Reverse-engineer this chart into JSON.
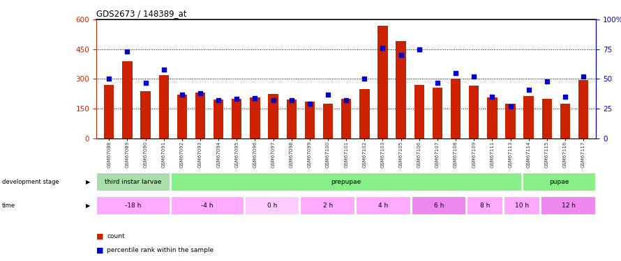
{
  "title": "GDS2673 / 148389_at",
  "samples": [
    "GSM67088",
    "GSM67089",
    "GSM67090",
    "GSM67091",
    "GSM67092",
    "GSM67093",
    "GSM67094",
    "GSM67095",
    "GSM67096",
    "GSM67097",
    "GSM67098",
    "GSM67099",
    "GSM67100",
    "GSM67101",
    "GSM67102",
    "GSM67103",
    "GSM67105",
    "GSM67106",
    "GSM67107",
    "GSM67108",
    "GSM67109",
    "GSM67111",
    "GSM67113",
    "GSM67114",
    "GSM67115",
    "GSM67116",
    "GSM67117"
  ],
  "counts": [
    270,
    390,
    240,
    320,
    220,
    230,
    195,
    200,
    205,
    225,
    195,
    185,
    175,
    200,
    250,
    570,
    490,
    270,
    255,
    300,
    265,
    205,
    175,
    215,
    200,
    175,
    295
  ],
  "percentile": [
    50,
    73,
    47,
    58,
    37,
    38,
    32,
    33,
    34,
    32,
    32,
    29,
    37,
    32,
    50,
    76,
    70,
    75,
    47,
    55,
    52,
    35,
    27,
    41,
    48,
    35,
    52
  ],
  "bar_color": "#cc2200",
  "dot_color": "#0000cc",
  "left_axis_color": "#cc2200",
  "right_axis_color": "#0000cc",
  "background_color": "#ffffff",
  "stages": [
    {
      "label": "third instar larvae",
      "start": 0,
      "end": 4,
      "color": "#aaddaa"
    },
    {
      "label": "prepupae",
      "start": 4,
      "end": 23,
      "color": "#88ee88"
    },
    {
      "label": "pupae",
      "start": 23,
      "end": 27,
      "color": "#88ee88"
    }
  ],
  "times": [
    {
      "label": "-18 h",
      "start": 0,
      "end": 4,
      "color": "#ffaaff"
    },
    {
      "label": "-4 h",
      "start": 4,
      "end": 8,
      "color": "#ffaaff"
    },
    {
      "label": "0 h",
      "start": 8,
      "end": 11,
      "color": "#ffccff"
    },
    {
      "label": "2 h",
      "start": 11,
      "end": 14,
      "color": "#ffaaff"
    },
    {
      "label": "4 h",
      "start": 14,
      "end": 17,
      "color": "#ffaaff"
    },
    {
      "label": "6 h",
      "start": 17,
      "end": 20,
      "color": "#ee88ee"
    },
    {
      "label": "8 h",
      "start": 20,
      "end": 22,
      "color": "#ffaaff"
    },
    {
      "label": "10 h",
      "start": 22,
      "end": 24,
      "color": "#ffaaff"
    },
    {
      "label": "12 h",
      "start": 24,
      "end": 27,
      "color": "#ee88ee"
    }
  ]
}
